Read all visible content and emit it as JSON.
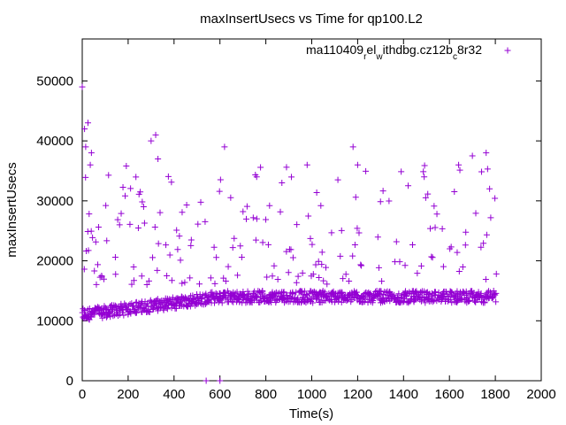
{
  "chart_data": {
    "type": "scatter",
    "title": "maxInsertUsecs vs Time for qp100.L2",
    "xlabel": "Time(s)",
    "ylabel": "maxInsertUsecs",
    "xlim": [
      0,
      2000
    ],
    "ylim": [
      0,
      57000
    ],
    "xticks": [
      0,
      200,
      400,
      600,
      800,
      1000,
      1200,
      1400,
      1600,
      1800,
      2000
    ],
    "yticks": [
      0,
      10000,
      20000,
      30000,
      40000,
      50000
    ],
    "xtick_labels": [
      "0",
      "200",
      "400",
      "600",
      "800",
      "1000",
      "1200",
      "1400",
      "1600",
      "1800",
      "2000"
    ],
    "ytick_labels": [
      "0",
      "10000",
      "20000",
      "30000",
      "40000",
      "50000"
    ],
    "legend": {
      "position": "top-right",
      "label_parts": [
        "ma110409",
        "r",
        "el",
        "w",
        "ithdbg.cz12b",
        "c",
        "8r32"
      ],
      "label": "ma110409_rel_withdbg.cz12b_c8r32"
    },
    "series": [
      {
        "name": "ma110409_rel_withdbg.cz12b_c8r32",
        "color": "#9400d3",
        "marker": "plus",
        "x_range": [
          0,
          1800
        ],
        "x_step": 5,
        "baseline_start": 11000,
        "baseline_plateau": 14000,
        "baseline_rise_end": 600,
        "baseline_spread": 2000,
        "upper_band": [
          16000,
          36000
        ],
        "outliers": [
          {
            "x": 0,
            "y": 49000
          },
          {
            "x": 10,
            "y": 42000
          },
          {
            "x": 25,
            "y": 43000
          },
          {
            "x": 15,
            "y": 39000
          },
          {
            "x": 40,
            "y": 38000
          },
          {
            "x": 35,
            "y": 36000
          },
          {
            "x": 300,
            "y": 40000
          },
          {
            "x": 320,
            "y": 41000
          },
          {
            "x": 330,
            "y": 37000
          },
          {
            "x": 620,
            "y": 39000
          },
          {
            "x": 1180,
            "y": 39000
          },
          {
            "x": 1200,
            "y": 36000
          },
          {
            "x": 1640,
            "y": 36000
          },
          {
            "x": 1700,
            "y": 37500
          },
          {
            "x": 1760,
            "y": 38000
          },
          {
            "x": 1775,
            "y": 32000
          },
          {
            "x": 980,
            "y": 36000
          },
          {
            "x": 760,
            "y": 34000
          },
          {
            "x": 870,
            "y": 33000
          },
          {
            "x": 1490,
            "y": 34000
          },
          {
            "x": 540,
            "y": 0
          },
          {
            "x": 600,
            "y": 0
          }
        ]
      }
    ]
  }
}
